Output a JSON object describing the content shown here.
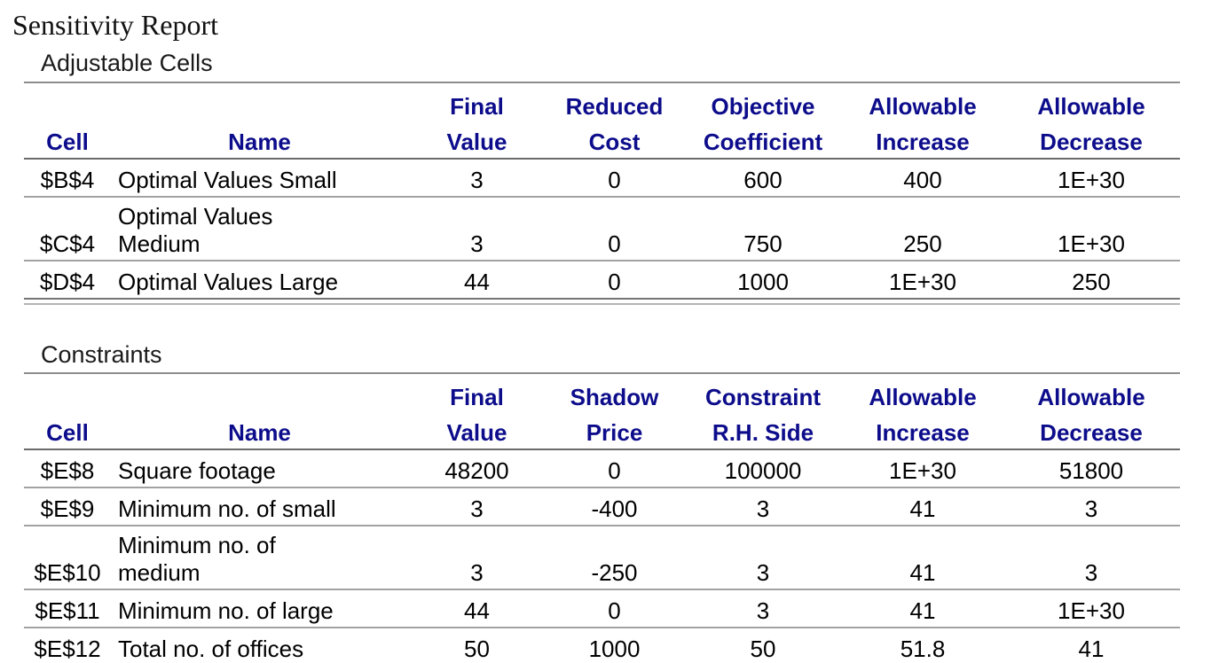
{
  "page": {
    "title": "Sensitivity Report"
  },
  "colors": {
    "header_text": "#0d0d8c",
    "body_text": "#000000",
    "line_top": "#8d8d8d",
    "line_header": "#6a6a6a",
    "line_row": "#a2a2a2",
    "line_bottom": "#757575",
    "line_accent": "#b5b5b5"
  },
  "adjustable": {
    "label": "Adjustable Cells",
    "header_top": {
      "final": "Final",
      "reduced": "Reduced",
      "objective": "Objective",
      "allow_inc": "Allowable",
      "allow_dec": "Allowable"
    },
    "header_bottom": {
      "cell": "Cell",
      "name": "Name",
      "value": "Value",
      "cost": "Cost",
      "coefficient": "Coefficient",
      "increase": "Increase",
      "decrease": "Decrease"
    },
    "rows": [
      {
        "cell": "$B$4",
        "name": "Optimal Values Small",
        "final_value": "3",
        "reduced_cost": "0",
        "objective_coefficient": "600",
        "allowable_increase": "400",
        "allowable_decrease": "1E+30"
      },
      {
        "cell": "$C$4",
        "name": "Optimal Values\nMedium",
        "final_value": "3",
        "reduced_cost": "0",
        "objective_coefficient": "750",
        "allowable_increase": "250",
        "allowable_decrease": "1E+30"
      },
      {
        "cell": "$D$4",
        "name": "Optimal Values Large",
        "final_value": "44",
        "reduced_cost": "0",
        "objective_coefficient": "1000",
        "allowable_increase": "1E+30",
        "allowable_decrease": "250"
      }
    ]
  },
  "constraints": {
    "label": "Constraints",
    "header_top": {
      "final": "Final",
      "shadow": "Shadow",
      "constraint": "Constraint",
      "allow_inc": "Allowable",
      "allow_dec": "Allowable"
    },
    "header_bottom": {
      "cell": "Cell",
      "name": "Name",
      "value": "Value",
      "price": "Price",
      "rhs": "R.H. Side",
      "increase": "Increase",
      "decrease": "Decrease"
    },
    "rows": [
      {
        "cell": "$E$8",
        "name": "Square footage",
        "final_value": "48200",
        "shadow_price": "0",
        "constraint_rhs": "100000",
        "allowable_increase": "1E+30",
        "allowable_decrease": "51800"
      },
      {
        "cell": "$E$9",
        "name": "Minimum no. of small",
        "final_value": "3",
        "shadow_price": "-400",
        "constraint_rhs": "3",
        "allowable_increase": "41",
        "allowable_decrease": "3"
      },
      {
        "cell": "$E$10",
        "name": "Minimum no. of\nmedium",
        "final_value": "3",
        "shadow_price": "-250",
        "constraint_rhs": "3",
        "allowable_increase": "41",
        "allowable_decrease": "3"
      },
      {
        "cell": "$E$11",
        "name": "Minimum no. of large",
        "final_value": "44",
        "shadow_price": "0",
        "constraint_rhs": "3",
        "allowable_increase": "41",
        "allowable_decrease": "1E+30"
      },
      {
        "cell": "$E$12",
        "name": "Total no. of offices",
        "final_value": "50",
        "shadow_price": "1000",
        "constraint_rhs": "50",
        "allowable_increase": "51.8",
        "allowable_decrease": "41"
      }
    ]
  }
}
